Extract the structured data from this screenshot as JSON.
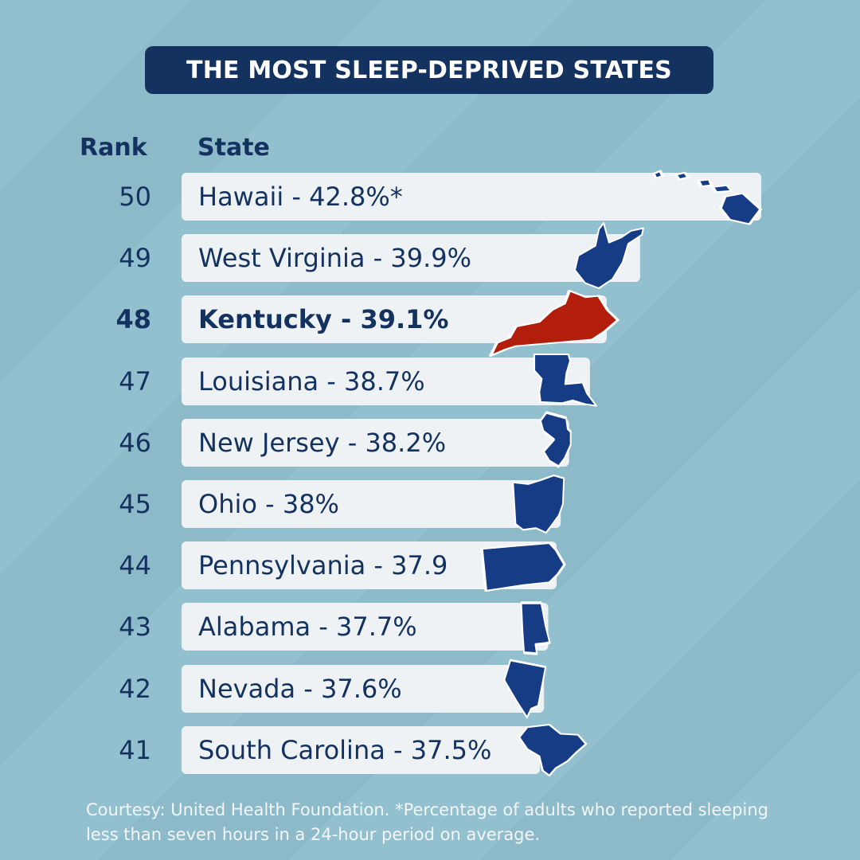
{
  "title": "THE MOST SLEEP-DEPRIVED STATES",
  "headers": {
    "rank": "Rank",
    "state": "State"
  },
  "footnote": "Courtesy: United Health Foundation. *Percentage of adults who reported sleeping less than seven hours in a 24-hour period on average.",
  "colors": {
    "background": "#93c0ce",
    "navy": "#13325f",
    "bar": "#eef2f5",
    "highlight": "#b21d0c",
    "state_shape": "#163c85"
  },
  "chart_data": {
    "type": "bar",
    "orientation": "horizontal",
    "rows": [
      {
        "rank": "50",
        "label": "Hawaii - 42.8%*",
        "state": "Hawaii",
        "value": 42.8,
        "highlight": false,
        "icon": "hawaii-shape-icon"
      },
      {
        "rank": "49",
        "label": "West Virginia - 39.9%",
        "state": "West Virginia",
        "value": 39.9,
        "highlight": false,
        "icon": "west-virginia-shape-icon"
      },
      {
        "rank": "48",
        "label": "Kentucky - 39.1%",
        "state": "Kentucky",
        "value": 39.1,
        "highlight": true,
        "icon": "kentucky-shape-icon"
      },
      {
        "rank": "47",
        "label": "Louisiana - 38.7%",
        "state": "Louisiana",
        "value": 38.7,
        "highlight": false,
        "icon": "louisiana-shape-icon"
      },
      {
        "rank": "46",
        "label": "New Jersey - 38.2%",
        "state": "New Jersey",
        "value": 38.2,
        "highlight": false,
        "icon": "new-jersey-shape-icon"
      },
      {
        "rank": "45",
        "label": "Ohio - 38%",
        "state": "Ohio",
        "value": 38,
        "highlight": false,
        "icon": "ohio-shape-icon"
      },
      {
        "rank": "44",
        "label": "Pennsylvania - 37.9",
        "state": "Pennsylvania",
        "value": 37.9,
        "highlight": false,
        "icon": "pennsylvania-shape-icon"
      },
      {
        "rank": "43",
        "label": "Alabama - 37.7%",
        "state": "Alabama",
        "value": 37.7,
        "highlight": false,
        "icon": "alabama-shape-icon"
      },
      {
        "rank": "42",
        "label": "Nevada - 37.6%",
        "state": "Nevada",
        "value": 37.6,
        "highlight": false,
        "icon": "nevada-shape-icon"
      },
      {
        "rank": "41",
        "label": "South Carolina - 37.5%",
        "state": "South Carolina",
        "value": 37.5,
        "highlight": false,
        "icon": "south-carolina-shape-icon"
      }
    ]
  }
}
